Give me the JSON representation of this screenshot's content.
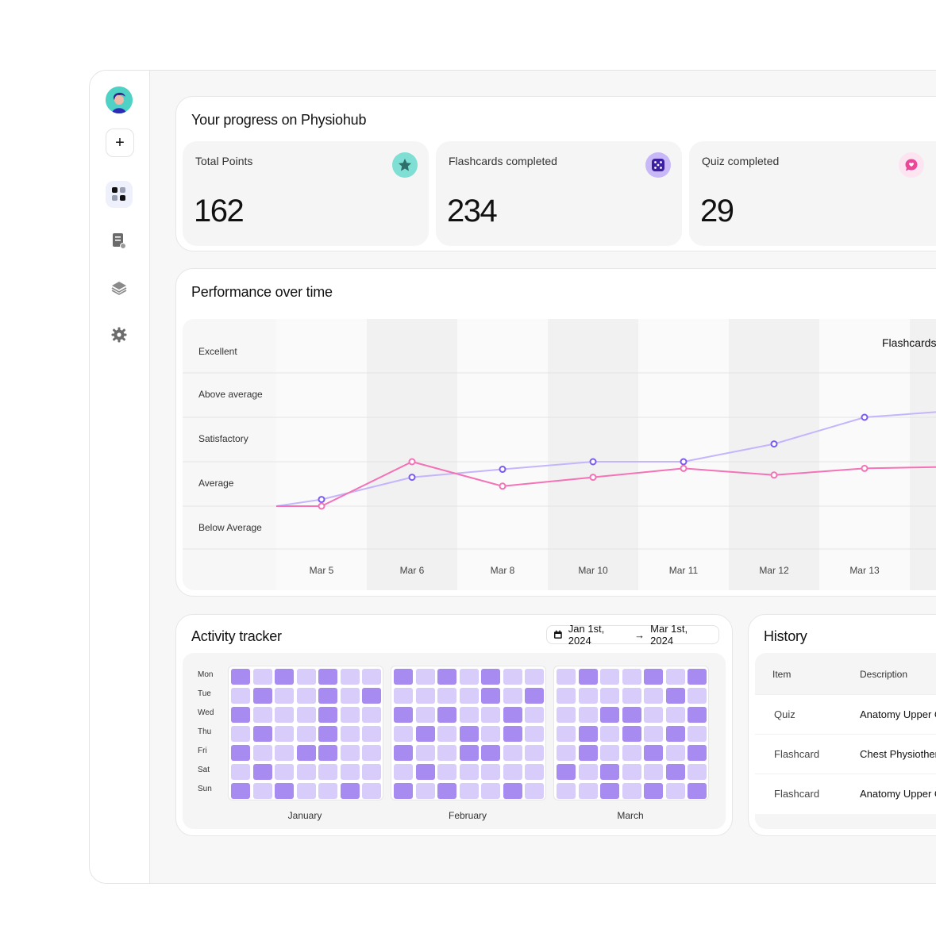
{
  "colors": {
    "accent": "#7b5cf0",
    "flashcards_line": "#c4b5fd",
    "quiz_line": "#f472b6"
  },
  "sidebar": {
    "items": [
      {
        "icon": "plus-icon"
      },
      {
        "icon": "dashboard-grid-icon",
        "active": true
      },
      {
        "icon": "document-icon"
      },
      {
        "icon": "layers-icon"
      },
      {
        "icon": "gear-icon"
      }
    ]
  },
  "progress": {
    "title": "Your progress on Physiohub",
    "stats": [
      {
        "label": "Total Points",
        "value": "162",
        "icon": "star-icon"
      },
      {
        "label": "Flashcards completed",
        "value": "234",
        "icon": "dice-icon"
      },
      {
        "label": "Quiz completed",
        "value": "29",
        "icon": "chat-bubble-icon"
      }
    ]
  },
  "performance": {
    "title": "Performance over time",
    "legend_label": "Flashcards"
  },
  "chart_data": {
    "type": "line",
    "y_categories": [
      "Below Average",
      "Average",
      "Satisfactory",
      "Above average",
      "Excellent"
    ],
    "x": [
      "Mar 5",
      "Mar 6",
      "Mar 8",
      "Mar 10",
      "Mar 11",
      "Mar 12",
      "Mar 13"
    ],
    "series": [
      {
        "name": "Flashcards",
        "color": "#c4b5fd",
        "marker": "#7b5cf0",
        "values": [
          0.65,
          1.15,
          1.33,
          1.5,
          1.5,
          1.9,
          2.5
        ]
      },
      {
        "color": "#f472b6",
        "marker": "#f472b6",
        "values": [
          0.5,
          1.5,
          0.95,
          1.15,
          1.35,
          1.2,
          1.35
        ]
      }
    ]
  },
  "activity": {
    "title": "Activity tracker",
    "date_start": "Jan 1st, 2024",
    "date_end": "Mar 1st, 2024",
    "days": [
      "Mon",
      "Tue",
      "Wed",
      "Thu",
      "Fri",
      "Sat",
      "Sun"
    ],
    "months": [
      {
        "name": "January",
        "levels": [
          [
            2,
            1,
            2,
            1,
            2,
            1,
            1
          ],
          [
            1,
            2,
            1,
            1,
            2,
            1,
            2
          ],
          [
            2,
            1,
            1,
            1,
            2,
            1,
            1
          ],
          [
            1,
            2,
            1,
            1,
            2,
            1,
            1
          ],
          [
            2,
            1,
            1,
            2,
            2,
            1,
            1
          ],
          [
            1,
            2,
            1,
            1,
            1,
            1,
            1
          ],
          [
            2,
            1,
            2,
            1,
            1,
            2,
            1
          ]
        ]
      },
      {
        "name": "February",
        "levels": [
          [
            2,
            1,
            2,
            1,
            2,
            1,
            1
          ],
          [
            1,
            1,
            1,
            1,
            2,
            1,
            2
          ],
          [
            2,
            1,
            2,
            1,
            1,
            2,
            1
          ],
          [
            1,
            2,
            1,
            2,
            1,
            2,
            1
          ],
          [
            2,
            1,
            1,
            2,
            2,
            1,
            1
          ],
          [
            1,
            2,
            1,
            1,
            1,
            1,
            1
          ],
          [
            2,
            1,
            2,
            1,
            1,
            2,
            1
          ]
        ]
      },
      {
        "name": "March",
        "levels": [
          [
            1,
            2,
            1,
            1,
            2,
            1,
            2
          ],
          [
            1,
            1,
            1,
            1,
            1,
            2,
            1
          ],
          [
            1,
            1,
            2,
            2,
            1,
            1,
            2
          ],
          [
            1,
            2,
            1,
            2,
            1,
            2,
            1
          ],
          [
            1,
            2,
            1,
            1,
            2,
            1,
            2
          ],
          [
            2,
            1,
            2,
            1,
            1,
            2,
            1
          ],
          [
            1,
            1,
            2,
            1,
            2,
            1,
            2
          ]
        ]
      }
    ]
  },
  "history": {
    "title": "History",
    "columns": [
      "Item",
      "Description"
    ],
    "rows": [
      {
        "item": "Quiz",
        "description": "Anatomy Upper C"
      },
      {
        "item": "Flashcard",
        "description": "Chest Physiother"
      },
      {
        "item": "Flashcard",
        "description": "Anatomy Upper C"
      }
    ]
  }
}
